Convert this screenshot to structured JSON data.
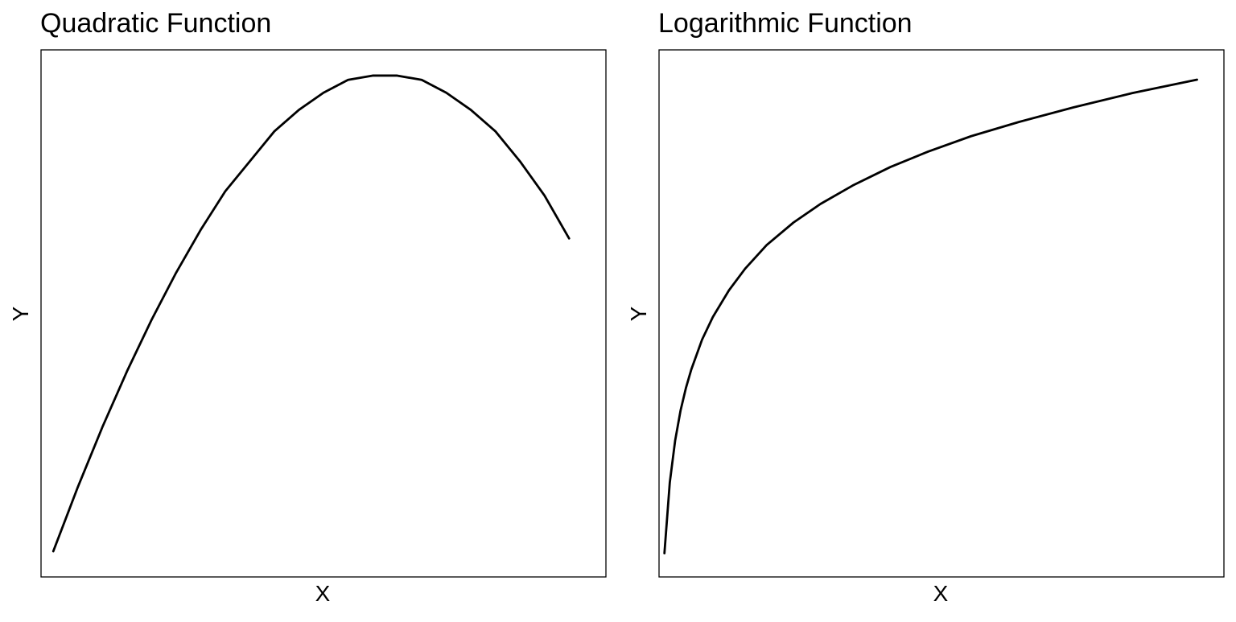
{
  "chart_data": [
    {
      "type": "line",
      "title": "Quadratic Function",
      "xlabel": "X",
      "ylabel": "Y",
      "grid": false,
      "legend": "none",
      "xlim": [
        0.5,
        23.5
      ],
      "ylim": [
        -17,
        106
      ],
      "series": [
        {
          "x": [
            1,
            2,
            3,
            4,
            5,
            6,
            7,
            8,
            9,
            10,
            11,
            12,
            13,
            14,
            15,
            16,
            17,
            18,
            19,
            20,
            21,
            22
          ],
          "y": [
            -11,
            4,
            18,
            31,
            43,
            54,
            64,
            73,
            80,
            87,
            92,
            96,
            99,
            100,
            100,
            99,
            96,
            92,
            87,
            80,
            72,
            62
          ]
        }
      ]
    },
    {
      "type": "line",
      "title": "Logarithmic Function",
      "xlabel": "X",
      "ylabel": "Y",
      "grid": false,
      "legend": "none",
      "xlim": [
        0,
        105
      ],
      "ylim": [
        -0.23,
        4.9
      ],
      "series": [
        {
          "x": [
            1,
            2,
            3,
            4,
            5,
            6,
            8,
            10,
            13,
            16,
            20,
            25,
            30,
            36,
            43,
            50,
            58,
            67,
            77,
            88,
            100
          ],
          "y": [
            0.0,
            0.69,
            1.1,
            1.39,
            1.61,
            1.79,
            2.08,
            2.3,
            2.56,
            2.77,
            3.0,
            3.22,
            3.4,
            3.58,
            3.76,
            3.91,
            4.06,
            4.2,
            4.34,
            4.48,
            4.61
          ]
        }
      ]
    }
  ]
}
